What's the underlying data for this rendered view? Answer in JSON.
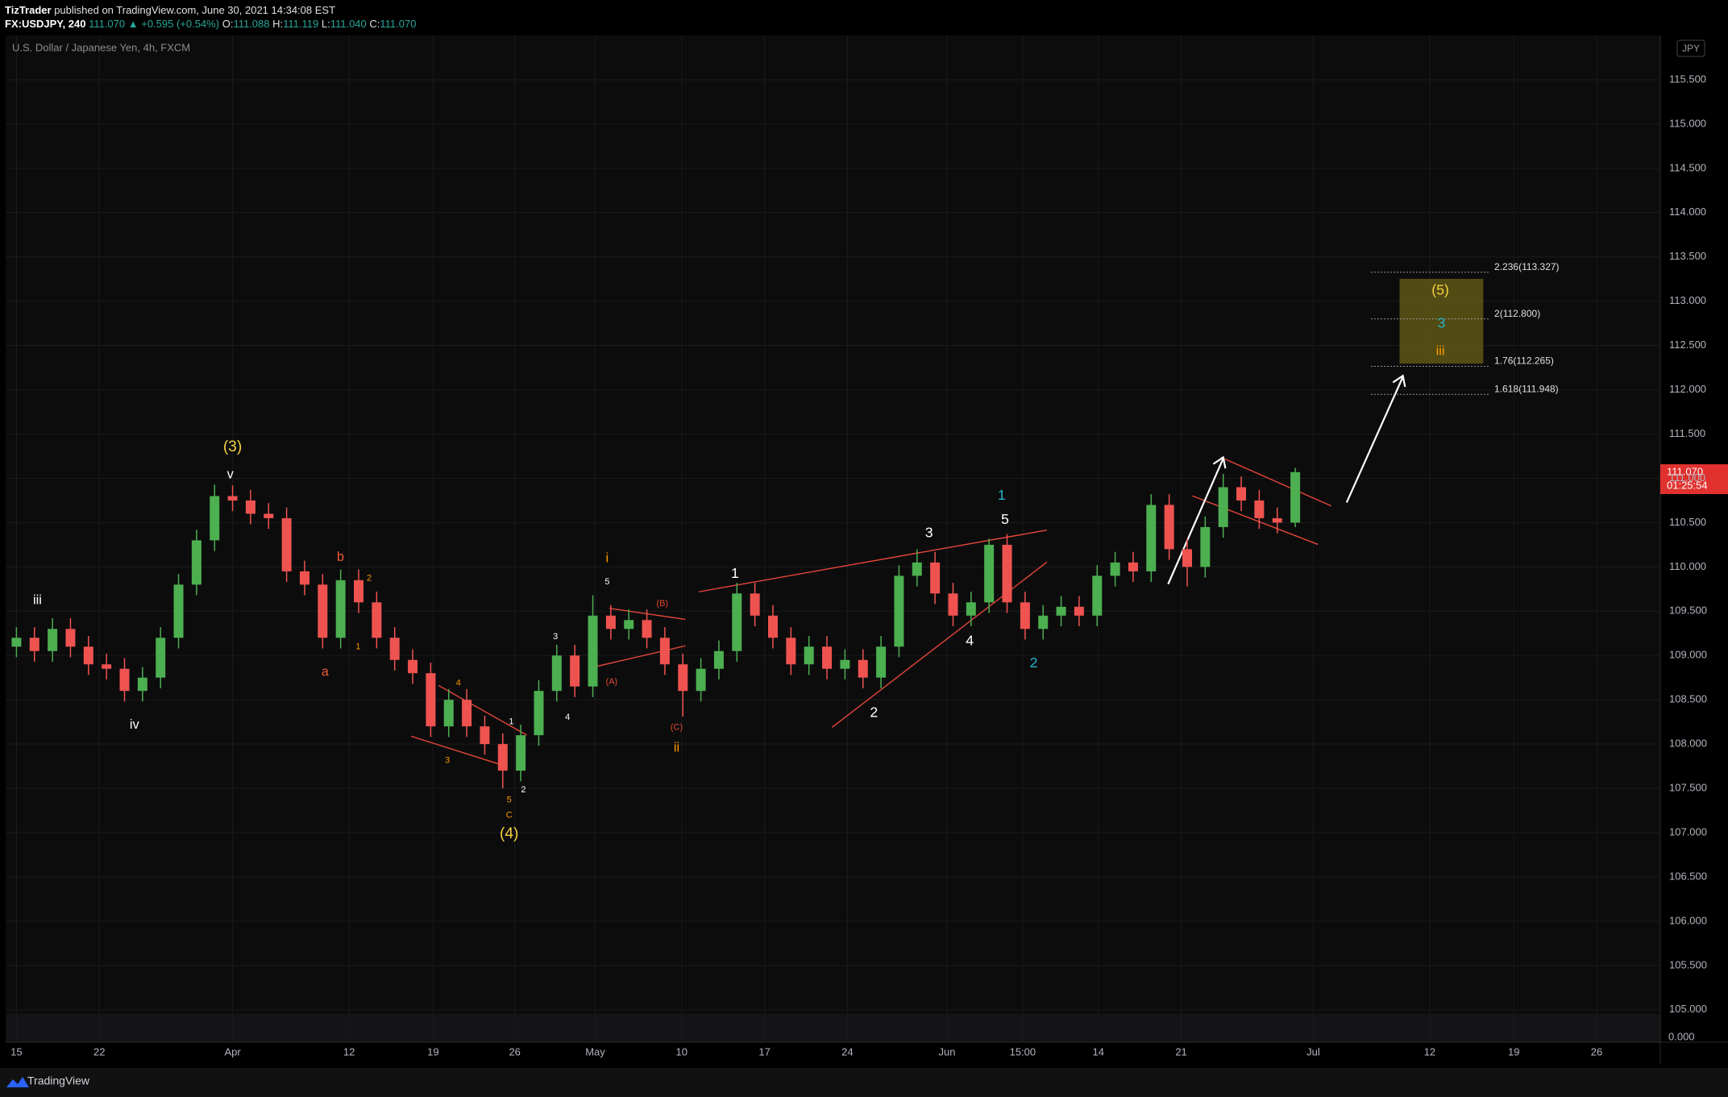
{
  "header": {
    "author": "TizTrader",
    "published": "published on TradingView.com, June 30, 2021 14:34:08 EST",
    "symbol": "FX:USDJPY, 240",
    "last": "111.070",
    "change": "▲ +0.595 (+0.54%)",
    "o_label": "O:",
    "o": "111.088",
    "h_label": "H:",
    "h": "111.119",
    "l_label": "L:",
    "l": "111.040",
    "c_label": "C:",
    "c": "111.070"
  },
  "footer": {
    "brand": "TradingView"
  },
  "chart_data": {
    "type": "candlestick",
    "title": "U.S. Dollar / Japanese Yen, 4h, FXCM",
    "currency": "JPY",
    "volume_axis_label": "0.000",
    "last_price_label": "111.070",
    "countdown": "01:25:54",
    "up_color": "#4caf50",
    "down_color": "#ef5350",
    "grid": true,
    "xlim": [
      -0.9,
      136.9
    ],
    "ylim": [
      104.98,
      116.0
    ],
    "xticks": [
      {
        "value": 0,
        "label": "15"
      },
      {
        "value": 6.9,
        "label": "22"
      },
      {
        "value": 18,
        "label": "Apr"
      },
      {
        "value": 27.7,
        "label": "12"
      },
      {
        "value": 34.7,
        "label": "19"
      },
      {
        "value": 41.5,
        "label": "26"
      },
      {
        "value": 48.2,
        "label": "May"
      },
      {
        "value": 55.4,
        "label": "10"
      },
      {
        "value": 62.3,
        "label": "17"
      },
      {
        "value": 69.2,
        "label": "24"
      },
      {
        "value": 77.5,
        "label": "Jun"
      },
      {
        "value": 83.8,
        "label": "15:00"
      },
      {
        "value": 90.1,
        "label": "14"
      },
      {
        "value": 97,
        "label": "21"
      },
      {
        "value": 108,
        "label": "Jul"
      },
      {
        "value": 117.7,
        "label": "12"
      },
      {
        "value": 124.7,
        "label": "19"
      },
      {
        "value": 131.6,
        "label": "26"
      }
    ],
    "yticks": [
      {
        "value": 105,
        "label": "105.000"
      },
      {
        "value": 105.5,
        "label": "105.500"
      },
      {
        "value": 106,
        "label": "106.000"
      },
      {
        "value": 106.5,
        "label": "106.500"
      },
      {
        "value": 107,
        "label": "107.000"
      },
      {
        "value": 107.5,
        "label": "107.500"
      },
      {
        "value": 108,
        "label": "108.000"
      },
      {
        "value": 108.5,
        "label": "108.500"
      },
      {
        "value": 109,
        "label": "109.000"
      },
      {
        "value": 109.5,
        "label": "109.500"
      },
      {
        "value": 110,
        "label": "110.000"
      },
      {
        "value": 110.5,
        "label": "110.500"
      },
      {
        "value": 111,
        "label": "111.000"
      },
      {
        "value": 111.5,
        "label": "111.500"
      },
      {
        "value": 112,
        "label": "112.000"
      },
      {
        "value": 112.5,
        "label": "112.500"
      },
      {
        "value": 113,
        "label": "113.000"
      },
      {
        "value": 113.5,
        "label": "113.500"
      },
      {
        "value": 114,
        "label": "114.000"
      },
      {
        "value": 114.5,
        "label": "114.500"
      },
      {
        "value": 115,
        "label": "115.000"
      },
      {
        "value": 115.5,
        "label": "115.500"
      }
    ],
    "x": [
      0,
      1.5,
      3,
      4.5,
      6,
      7.5,
      9,
      10.5,
      12,
      13.5,
      15,
      16.5,
      18,
      19.5,
      21,
      22.5,
      24,
      25.5,
      27,
      28.5,
      30,
      31.5,
      33,
      34.5,
      36,
      37.5,
      39,
      40.5,
      42,
      43.5,
      45,
      46.5,
      48,
      49.5,
      51,
      52.5,
      54,
      55.5,
      57,
      58.5,
      60,
      61.5,
      63,
      64.5,
      66,
      67.5,
      69,
      70.5,
      72,
      73.5,
      75,
      76.5,
      78,
      79.5,
      81,
      82.5,
      84,
      85.5,
      87,
      88.5,
      90,
      91.5,
      93,
      94.5,
      96,
      97.5,
      99,
      100.5,
      102,
      103.5,
      105,
      106.5
    ],
    "open": [
      109.1,
      109.2,
      109.05,
      109.3,
      109.1,
      108.9,
      108.85,
      108.6,
      108.75,
      109.2,
      109.8,
      110.3,
      110.8,
      110.75,
      110.6,
      110.55,
      109.95,
      109.8,
      109.2,
      109.85,
      109.6,
      109.2,
      108.95,
      108.8,
      108.2,
      108.5,
      108.2,
      108.0,
      107.7,
      108.1,
      108.6,
      109.0,
      108.65,
      109.45,
      109.3,
      109.4,
      109.2,
      108.9,
      108.6,
      108.85,
      109.05,
      109.7,
      109.45,
      109.2,
      108.9,
      109.1,
      108.85,
      108.95,
      108.75,
      109.1,
      109.9,
      110.05,
      109.7,
      109.45,
      109.6,
      110.25,
      109.6,
      109.3,
      109.45,
      109.55,
      109.45,
      109.9,
      110.05,
      109.95,
      110.7,
      110.2,
      110.0,
      110.45,
      110.9,
      110.75,
      110.55,
      110.5
    ],
    "high": [
      109.32,
      109.32,
      109.42,
      109.42,
      109.22,
      109.02,
      108.97,
      108.87,
      109.32,
      109.92,
      110.42,
      110.93,
      110.92,
      110.87,
      110.72,
      110.67,
      110.07,
      109.92,
      109.97,
      109.97,
      109.72,
      109.32,
      109.07,
      108.92,
      108.62,
      108.62,
      108.32,
      108.12,
      108.22,
      108.72,
      109.12,
      109.12,
      109.68,
      109.57,
      109.52,
      109.52,
      109.32,
      109.02,
      108.97,
      109.17,
      109.82,
      109.82,
      109.57,
      109.32,
      109.22,
      109.22,
      109.07,
      109.07,
      109.22,
      110.02,
      110.2,
      110.17,
      109.82,
      109.72,
      110.32,
      110.37,
      109.72,
      109.57,
      109.67,
      109.67,
      110.02,
      110.17,
      110.17,
      110.82,
      110.82,
      110.32,
      110.57,
      111.05,
      111.02,
      110.87,
      110.67,
      111.119
    ],
    "low": [
      108.98,
      108.93,
      108.93,
      108.98,
      108.78,
      108.73,
      108.48,
      108.48,
      108.63,
      109.08,
      109.68,
      110.18,
      110.63,
      110.48,
      110.43,
      109.83,
      109.68,
      109.08,
      109.08,
      109.48,
      109.08,
      108.83,
      108.68,
      108.08,
      108.08,
      108.08,
      107.88,
      107.5,
      107.58,
      107.98,
      108.48,
      108.53,
      108.53,
      109.18,
      109.18,
      109.08,
      108.78,
      108.31,
      108.48,
      108.73,
      108.93,
      109.33,
      109.08,
      108.78,
      108.78,
      108.73,
      108.73,
      108.63,
      108.63,
      108.98,
      109.78,
      109.58,
      109.33,
      109.33,
      109.48,
      109.48,
      109.18,
      109.18,
      109.33,
      109.33,
      109.33,
      109.78,
      109.83,
      109.83,
      110.08,
      109.78,
      109.88,
      110.33,
      110.63,
      110.43,
      110.38,
      110.45
    ],
    "close": [
      109.2,
      109.05,
      109.3,
      109.1,
      108.9,
      108.85,
      108.6,
      108.75,
      109.2,
      109.8,
      110.3,
      110.8,
      110.75,
      110.6,
      110.55,
      109.95,
      109.8,
      109.2,
      109.85,
      109.6,
      109.2,
      108.95,
      108.8,
      108.2,
      108.5,
      108.2,
      108.0,
      107.7,
      108.1,
      108.6,
      109.0,
      108.65,
      109.45,
      109.3,
      109.4,
      109.2,
      108.9,
      108.6,
      108.85,
      109.05,
      109.7,
      109.45,
      109.2,
      108.9,
      109.1,
      108.85,
      108.95,
      108.75,
      109.1,
      109.9,
      110.05,
      109.7,
      109.45,
      109.6,
      110.25,
      109.6,
      109.3,
      109.45,
      109.55,
      109.45,
      109.9,
      110.05,
      109.95,
      110.7,
      110.2,
      110.0,
      110.45,
      110.9,
      110.75,
      110.55,
      110.5,
      111.07
    ],
    "fib_levels": [
      {
        "value": 113.327,
        "label": "2.236(113.327)"
      },
      {
        "value": 112.8,
        "label": "2(112.800)"
      },
      {
        "value": 112.265,
        "label": "1.76(112.265)"
      },
      {
        "value": 111.948,
        "label": "1.618(111.948)"
      }
    ],
    "annotations": [
      {
        "text": "(3)",
        "color": "#f7d23e"
      },
      {
        "text": "v",
        "color": "#ffffff"
      },
      {
        "text": "iii",
        "color": "#ffffff"
      },
      {
        "text": "iv",
        "color": "#ffffff"
      },
      {
        "text": "b",
        "color": "#f0553a"
      },
      {
        "text": "a",
        "color": "#f0553a"
      },
      {
        "text": "2",
        "color": "#ff9800"
      },
      {
        "text": "1",
        "color": "#ff9800"
      },
      {
        "text": "4",
        "color": "#ff9800"
      },
      {
        "text": "3",
        "color": "#ff9800"
      },
      {
        "text": "5",
        "color": "#ff9800"
      },
      {
        "text": "C",
        "color": "#ff9800"
      },
      {
        "text": "(4)",
        "color": "#f7d23e"
      },
      {
        "text": "1",
        "color": "#ffffff"
      },
      {
        "text": "2",
        "color": "#ffffff"
      },
      {
        "text": "3",
        "color": "#ffffff"
      },
      {
        "text": "4",
        "color": "#ffffff"
      },
      {
        "text": "5",
        "color": "#ffffff"
      },
      {
        "text": "i",
        "color": "#ff9800"
      },
      {
        "text": "(B)",
        "color": "#e8472f"
      },
      {
        "text": "(A)",
        "color": "#e8472f"
      },
      {
        "text": "(C)",
        "color": "#e8472f"
      },
      {
        "text": "ii",
        "color": "#ff9800"
      },
      {
        "text": "1",
        "color": "#ffffff"
      },
      {
        "text": "2",
        "color": "#ffffff"
      },
      {
        "text": "3",
        "color": "#ffffff"
      },
      {
        "text": "4",
        "color": "#ffffff"
      },
      {
        "text": "5",
        "color": "#ffffff"
      },
      {
        "text": "1",
        "color": "#26b5c9"
      },
      {
        "text": "2",
        "color": "#26b5c9"
      },
      {
        "text": "(5)",
        "color": "#f7d23e"
      },
      {
        "text": "3",
        "color": "#26b5c9"
      },
      {
        "text": "iii",
        "color": "#ff9800"
      }
    ]
  }
}
